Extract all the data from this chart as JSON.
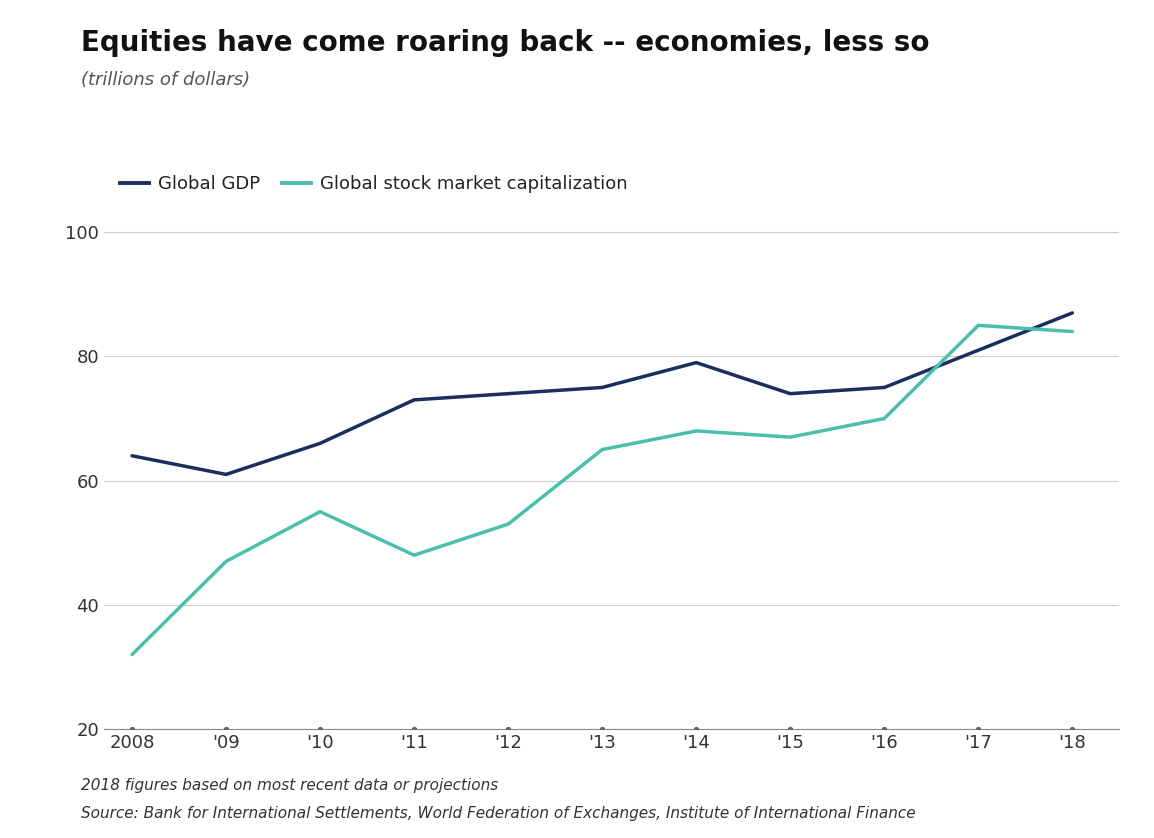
{
  "title": "Equities have come roaring back -- economies, less so",
  "subtitle": "(trillions of dollars)",
  "footnote1": "2018 figures based on most recent data or projections",
  "footnote2": "Source: Bank for International Settlements, World Federation of Exchanges, Institute of International Finance",
  "years": [
    2008,
    2009,
    2010,
    2011,
    2012,
    2013,
    2014,
    2015,
    2016,
    2017,
    2018
  ],
  "x_labels": [
    "2008",
    "'09",
    "'10",
    "'11",
    "'12",
    "'13",
    "'14",
    "'15",
    "'16",
    "'17",
    "'18"
  ],
  "gdp": [
    64,
    61,
    66,
    73,
    74,
    75,
    79,
    74,
    75,
    81,
    87
  ],
  "market_cap": [
    32,
    47,
    55,
    48,
    53,
    65,
    68,
    67,
    70,
    85,
    84
  ],
  "gdp_color": "#1a2f5e",
  "market_cap_color": "#4bbfac",
  "ylim": [
    20,
    105
  ],
  "yticks": [
    20,
    40,
    60,
    80,
    100
  ],
  "background_color": "#ffffff",
  "grid_color": "#cccccc",
  "line_width": 2.5,
  "legend_gdp": "Global GDP",
  "legend_market": "Global stock market capitalization",
  "title_fontsize": 20,
  "subtitle_fontsize": 13,
  "tick_fontsize": 13,
  "legend_fontsize": 13,
  "footnote_fontsize": 11
}
